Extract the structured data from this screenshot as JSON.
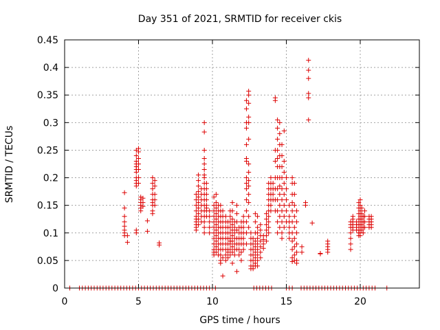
{
  "chart_data": {
    "type": "scatter",
    "title": "Day 351 of 2021, SRMTID for receiver ckis",
    "xlabel": "GPS time / hours",
    "ylabel": "SRMTID / TECUs",
    "xlim": [
      0,
      24
    ],
    "ylim": [
      0,
      0.45
    ],
    "xticks": [
      0,
      5,
      10,
      15,
      20
    ],
    "yticks": [
      0,
      0.05,
      0.1,
      0.15,
      0.2,
      0.25,
      0.3,
      0.35,
      0.4,
      0.45
    ],
    "ytick_labels": [
      "0",
      "0.05",
      "0.1",
      "0.15",
      "0.2",
      "0.25",
      "0.3",
      "0.35",
      "0.4",
      "0.45"
    ],
    "grid": true,
    "marker": "+",
    "marker_color": "#dd0000",
    "zero_points_x": [
      0.35,
      1.0,
      1.2,
      1.4,
      1.6,
      1.8,
      2.0,
      2.2,
      2.4,
      2.6,
      2.8,
      3.0,
      3.2,
      3.4,
      3.6,
      3.8,
      4.0,
      4.2,
      4.4,
      4.6,
      4.8,
      5.0,
      5.2,
      5.4,
      5.6,
      5.8,
      6.0,
      6.2,
      6.4,
      6.6,
      6.8,
      7.0,
      7.2,
      7.4,
      7.6,
      7.8,
      8.0,
      8.2,
      8.4,
      8.6,
      8.8,
      9.0,
      9.2,
      9.4,
      9.6,
      9.8,
      10.0,
      10.2,
      12.8,
      13.0,
      13.2,
      13.4,
      13.6,
      13.8,
      14.0,
      15.0,
      15.2,
      15.4,
      16.0,
      16.2,
      16.4,
      16.6,
      16.8,
      17.0,
      17.2,
      17.4,
      17.6,
      17.8,
      18.0,
      18.2,
      18.4,
      18.6,
      18.8,
      19.0,
      19.2,
      19.4,
      19.6,
      19.8,
      20.0,
      20.2,
      20.4,
      20.6,
      20.8,
      21.0,
      21.8
    ],
    "clusters": [
      {
        "x": 4.05,
        "y_values": [
          0.173,
          0.145,
          0.13,
          0.12,
          0.112,
          0.105,
          0.1,
          0.095
        ]
      },
      {
        "x": 4.25,
        "y_values": [
          0.095,
          0.083
        ]
      },
      {
        "x": 4.85,
        "y_values": [
          0.25,
          0.24,
          0.23,
          0.225,
          0.22,
          0.215,
          0.21,
          0.2,
          0.195,
          0.19,
          0.185,
          0.105,
          0.1
        ]
      },
      {
        "x": 5.0,
        "y_values": [
          0.253,
          0.247,
          0.235,
          0.225,
          0.215,
          0.2,
          0.19
        ]
      },
      {
        "x": 5.15,
        "y_values": [
          0.165,
          0.16,
          0.155,
          0.15,
          0.145,
          0.14
        ]
      },
      {
        "x": 5.3,
        "y_values": [
          0.163,
          0.155,
          0.148
        ]
      },
      {
        "x": 5.6,
        "y_values": [
          0.122,
          0.103
        ]
      },
      {
        "x": 5.95,
        "y_values": [
          0.2,
          0.19,
          0.18,
          0.17,
          0.16,
          0.155,
          0.15,
          0.14,
          0.135
        ]
      },
      {
        "x": 6.1,
        "y_values": [
          0.195,
          0.185,
          0.17,
          0.16,
          0.15
        ]
      },
      {
        "x": 6.4,
        "y_values": [
          0.082,
          0.078
        ]
      },
      {
        "x": 8.9,
        "y_values": [
          0.17,
          0.16,
          0.15,
          0.14,
          0.13,
          0.125,
          0.12,
          0.115,
          0.11,
          0.105
        ]
      },
      {
        "x": 9.05,
        "y_values": [
          0.205,
          0.195,
          0.185,
          0.175,
          0.165,
          0.155,
          0.145,
          0.135,
          0.125,
          0.115
        ]
      },
      {
        "x": 9.25,
        "y_values": [
          0.18,
          0.17,
          0.16,
          0.15,
          0.14,
          0.13,
          0.12
        ]
      },
      {
        "x": 9.45,
        "y_values": [
          0.3,
          0.283,
          0.25,
          0.235,
          0.225,
          0.215,
          0.205,
          0.2,
          0.19,
          0.18,
          0.17,
          0.16,
          0.15,
          0.14,
          0.13,
          0.12,
          0.11,
          0.1
        ]
      },
      {
        "x": 9.6,
        "y_values": [
          0.19,
          0.18,
          0.17,
          0.16,
          0.15,
          0.145,
          0.14,
          0.13
        ]
      },
      {
        "x": 9.8,
        "y_values": [
          0.14,
          0.13,
          0.12,
          0.11,
          0.1
        ]
      },
      {
        "x": 10.1,
        "y_values": [
          0.165,
          0.15,
          0.14,
          0.13,
          0.12,
          0.11,
          0.1,
          0.09,
          0.08,
          0.07,
          0.065,
          0.06
        ]
      },
      {
        "x": 10.25,
        "y_values": [
          0.17,
          0.155,
          0.145,
          0.135,
          0.125,
          0.115,
          0.105,
          0.095,
          0.085,
          0.075,
          0.065
        ]
      },
      {
        "x": 10.4,
        "y_values": [
          0.15,
          0.14,
          0.13,
          0.12,
          0.11,
          0.1,
          0.09,
          0.08,
          0.07,
          0.06
        ]
      },
      {
        "x": 10.55,
        "y_values": [
          0.15,
          0.14,
          0.13,
          0.12,
          0.11,
          0.1,
          0.09,
          0.08,
          0.07,
          0.06,
          0.05,
          0.045
        ]
      },
      {
        "x": 10.7,
        "y_values": [
          0.14,
          0.13,
          0.12,
          0.11,
          0.1,
          0.09,
          0.08,
          0.07,
          0.055,
          0.022
        ]
      },
      {
        "x": 10.9,
        "y_values": [
          0.13,
          0.12,
          0.11,
          0.1,
          0.09,
          0.08,
          0.07,
          0.06,
          0.05
        ]
      },
      {
        "x": 11.05,
        "y_values": [
          0.12,
          0.11,
          0.1,
          0.09,
          0.08,
          0.07,
          0.065,
          0.055
        ]
      },
      {
        "x": 11.2,
        "y_values": [
          0.14,
          0.13,
          0.12,
          0.11,
          0.1,
          0.09,
          0.085,
          0.08,
          0.07,
          0.06
        ]
      },
      {
        "x": 11.35,
        "y_values": [
          0.155,
          0.14,
          0.125,
          0.115,
          0.105,
          0.095,
          0.085,
          0.075,
          0.065,
          0.045
        ]
      },
      {
        "x": 11.5,
        "y_values": [
          0.12,
          0.11,
          0.1,
          0.09,
          0.08,
          0.07,
          0.06
        ]
      },
      {
        "x": 11.65,
        "y_values": [
          0.15,
          0.135,
          0.12,
          0.105,
          0.09,
          0.08,
          0.07,
          0.03
        ]
      },
      {
        "x": 11.8,
        "y_values": [
          0.11,
          0.1,
          0.09,
          0.08,
          0.07,
          0.06
        ]
      },
      {
        "x": 11.95,
        "y_values": [
          0.12,
          0.11,
          0.1,
          0.09,
          0.08,
          0.065,
          0.05
        ]
      },
      {
        "x": 12.1,
        "y_values": [
          0.13,
          0.12,
          0.11,
          0.1,
          0.09,
          0.08,
          0.07
        ]
      },
      {
        "x": 12.3,
        "y_values": [
          0.34,
          0.325,
          0.3,
          0.29,
          0.26,
          0.235,
          0.23,
          0.2,
          0.19,
          0.18,
          0.16,
          0.14,
          0.12,
          0.1,
          0.08
        ]
      },
      {
        "x": 12.45,
        "y_values": [
          0.357,
          0.35,
          0.335,
          0.31,
          0.3,
          0.27,
          0.225,
          0.21,
          0.195,
          0.185,
          0.17,
          0.155,
          0.13,
          0.11
        ]
      },
      {
        "x": 12.6,
        "y_values": [
          0.1,
          0.09,
          0.08,
          0.07,
          0.06,
          0.05,
          0.04,
          0.035
        ]
      },
      {
        "x": 12.75,
        "y_values": [
          0.09,
          0.08,
          0.07,
          0.06,
          0.05,
          0.04,
          0.035
        ]
      },
      {
        "x": 12.9,
        "y_values": [
          0.135,
          0.12,
          0.1,
          0.085,
          0.075,
          0.065,
          0.055,
          0.045,
          0.04
        ]
      },
      {
        "x": 13.05,
        "y_values": [
          0.13,
          0.11,
          0.1,
          0.09,
          0.08,
          0.07,
          0.06,
          0.05,
          0.04
        ]
      },
      {
        "x": 13.25,
        "y_values": [
          0.115,
          0.105,
          0.095,
          0.085,
          0.075,
          0.065,
          0.055
        ]
      },
      {
        "x": 13.45,
        "y_values": [
          0.095,
          0.088,
          0.08,
          0.072
        ]
      },
      {
        "x": 13.65,
        "y_values": [
          0.135,
          0.125,
          0.115,
          0.105,
          0.095,
          0.085
        ]
      },
      {
        "x": 13.8,
        "y_values": [
          0.19,
          0.18,
          0.17,
          0.16,
          0.15,
          0.14,
          0.13,
          0.12,
          0.11,
          0.1
        ]
      },
      {
        "x": 13.95,
        "y_values": [
          0.2,
          0.19,
          0.18,
          0.17,
          0.16,
          0.15,
          0.14
        ]
      },
      {
        "x": 14.1,
        "y_values": [
          0.19,
          0.18,
          0.17,
          0.16
        ]
      },
      {
        "x": 14.25,
        "y_values": [
          0.345,
          0.34,
          0.25,
          0.23,
          0.2,
          0.18,
          0.16,
          0.14
        ]
      },
      {
        "x": 14.4,
        "y_values": [
          0.305,
          0.29,
          0.27,
          0.25,
          0.235,
          0.22,
          0.2,
          0.18,
          0.16,
          0.14,
          0.12,
          0.1
        ]
      },
      {
        "x": 14.55,
        "y_values": [
          0.3,
          0.28,
          0.26,
          0.24,
          0.22,
          0.2,
          0.185,
          0.17,
          0.15,
          0.13,
          0.11
        ]
      },
      {
        "x": 14.7,
        "y_values": [
          0.26,
          0.24,
          0.22,
          0.2,
          0.18,
          0.16,
          0.14,
          0.12,
          0.1,
          0.09
        ]
      },
      {
        "x": 14.85,
        "y_values": [
          0.285,
          0.23,
          0.21,
          0.19,
          0.17,
          0.15,
          0.13,
          0.11
        ]
      },
      {
        "x": 15.0,
        "y_values": [
          0.2,
          0.18,
          0.16,
          0.14,
          0.12
        ]
      },
      {
        "x": 15.2,
        "y_values": [
          0.15,
          0.13,
          0.12,
          0.11,
          0.1,
          0.09
        ]
      },
      {
        "x": 15.4,
        "y_values": [
          0.2,
          0.19,
          0.17,
          0.155,
          0.14,
          0.12,
          0.1,
          0.085,
          0.07,
          0.055,
          0.048
        ]
      },
      {
        "x": 15.55,
        "y_values": [
          0.19,
          0.17,
          0.15,
          0.13,
          0.11,
          0.09,
          0.075,
          0.06,
          0.05
        ]
      },
      {
        "x": 15.7,
        "y_values": [
          0.14,
          0.12,
          0.1,
          0.08,
          0.065,
          0.05,
          0.045
        ]
      },
      {
        "x": 16.05,
        "y_values": [
          0.075,
          0.065
        ]
      },
      {
        "x": 16.3,
        "y_values": [
          0.155,
          0.15
        ]
      },
      {
        "x": 16.5,
        "y_values": [
          0.413,
          0.395,
          0.38,
          0.353,
          0.345,
          0.305
        ]
      },
      {
        "x": 16.75,
        "y_values": [
          0.118
        ]
      },
      {
        "x": 17.3,
        "y_values": [
          0.063,
          0.062
        ]
      },
      {
        "x": 17.8,
        "y_values": [
          0.085,
          0.08,
          0.075,
          0.07,
          0.065
        ]
      },
      {
        "x": 19.35,
        "y_values": [
          0.12,
          0.115,
          0.11,
          0.1,
          0.09,
          0.08,
          0.07
        ]
      },
      {
        "x": 19.5,
        "y_values": [
          0.13,
          0.125,
          0.12,
          0.115,
          0.11,
          0.105
        ]
      },
      {
        "x": 19.75,
        "y_values": [
          0.12,
          0.115,
          0.11,
          0.105
        ]
      },
      {
        "x": 19.9,
        "y_values": [
          0.155,
          0.145,
          0.135,
          0.125,
          0.115,
          0.105,
          0.1,
          0.095
        ]
      },
      {
        "x": 20.0,
        "y_values": [
          0.16,
          0.15,
          0.14,
          0.13,
          0.12,
          0.11,
          0.1,
          0.095
        ]
      },
      {
        "x": 20.1,
        "y_values": [
          0.145,
          0.135,
          0.125,
          0.115,
          0.105
        ]
      },
      {
        "x": 20.2,
        "y_values": [
          0.13,
          0.12,
          0.11,
          0.1
        ]
      },
      {
        "x": 20.3,
        "y_values": [
          0.14,
          0.13,
          0.12,
          0.11
        ]
      },
      {
        "x": 20.6,
        "y_values": [
          0.13,
          0.125,
          0.12,
          0.115,
          0.11
        ]
      },
      {
        "x": 20.75,
        "y_values": [
          0.13,
          0.125,
          0.12,
          0.115,
          0.11
        ]
      }
    ]
  }
}
